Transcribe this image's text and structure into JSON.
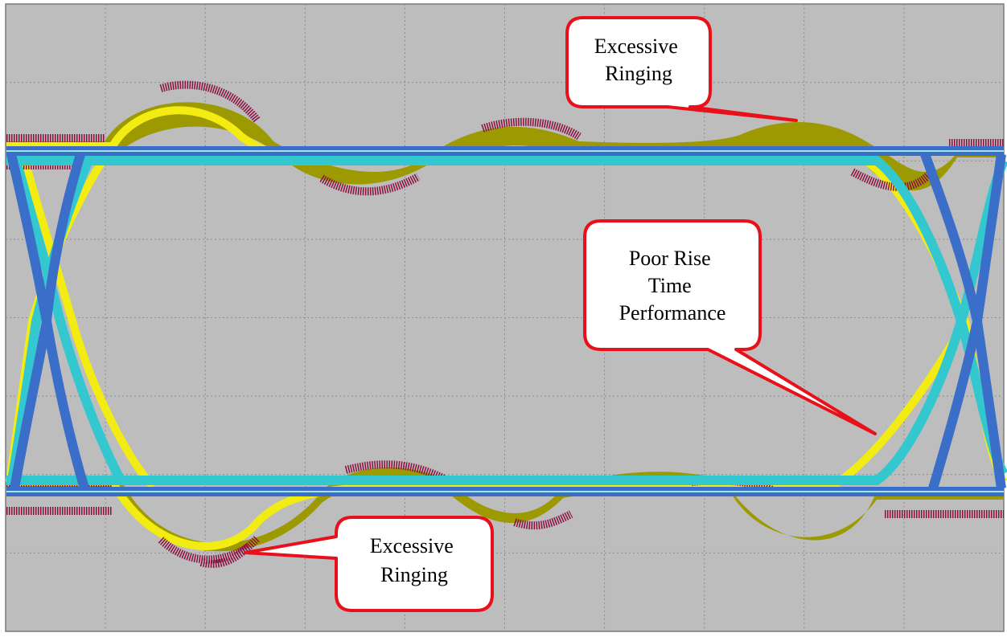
{
  "callouts": [
    {
      "lines": [
        "Excessive",
        "Ringing"
      ]
    },
    {
      "lines": [
        "Poor Rise",
        "Time",
        "Performance"
      ]
    },
    {
      "lines": [
        "Excessive",
        "Ringing"
      ]
    }
  ]
}
